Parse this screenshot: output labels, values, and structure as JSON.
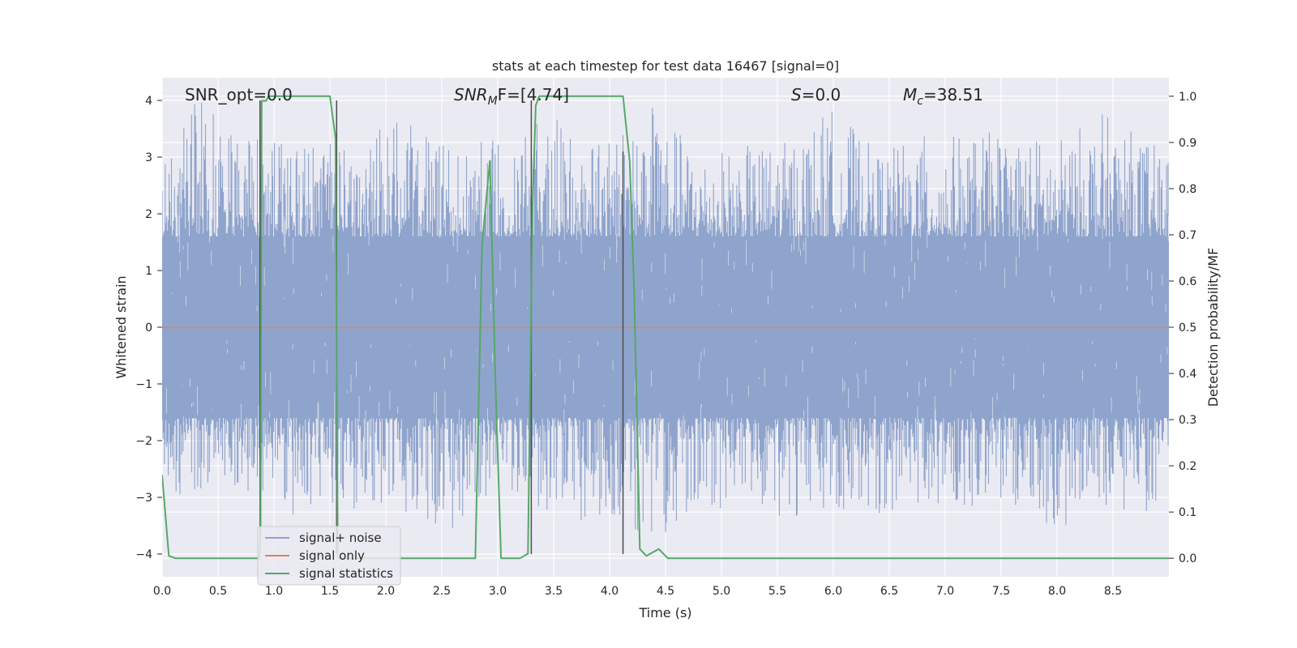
{
  "chart_data": {
    "type": "line",
    "title": "stats at each timestep for test data 16467 [signal=0]",
    "xlabel": "Time (s)",
    "ylabel": "Whitened strain",
    "y2label": "Detection probability/MF",
    "xlim": [
      0.0,
      9.0
    ],
    "ylim": [
      -4.4,
      4.4
    ],
    "y2lim": [
      -0.04,
      1.04
    ],
    "xticks": [
      "0.0",
      "0.5",
      "1.0",
      "1.5",
      "2.0",
      "2.5",
      "3.0",
      "3.5",
      "4.0",
      "4.5",
      "5.0",
      "5.5",
      "6.0",
      "6.5",
      "7.0",
      "7.5",
      "8.0",
      "8.5"
    ],
    "yticks": [
      "4",
      "3",
      "2",
      "1",
      "0",
      "−1",
      "−2",
      "−3",
      "−4"
    ],
    "y2ticks": [
      "1.0",
      "0.9",
      "0.8",
      "0.7",
      "0.6",
      "0.5",
      "0.4",
      "0.3",
      "0.2",
      "0.1",
      "0.0"
    ],
    "grid": true,
    "legend_position": "lower-left",
    "annotations": {
      "snr_opt": "SNR_opt=0.0",
      "snr_mf_base": "SNR",
      "snr_mf_sub": "M",
      "snr_mf_rest": "F=[4.74]",
      "s_label": "S",
      "s_rest": "=0.0",
      "mc_base": "M",
      "mc_sub": "c",
      "mc_rest": "=38.51"
    },
    "colors": {
      "signal_noise": "#8fa4cc",
      "signal_only": "#dd8452",
      "signal_statistics": "#55a868",
      "background": "#eaeaf2",
      "grid": "#ffffff",
      "vlines": "#4d4d4d"
    },
    "series": [
      {
        "name": "signal+ noise",
        "kind": "noise_band",
        "inner_amplitude": 1.6,
        "peak_envelope": [
          {
            "t": 0.0,
            "up": 2.9,
            "down": -3.0
          },
          {
            "t": 0.3,
            "up": 4.0,
            "down": -2.9
          },
          {
            "t": 0.5,
            "up": 4.0,
            "down": -2.8
          },
          {
            "t": 0.9,
            "up": 3.3,
            "down": -3.0
          },
          {
            "t": 1.2,
            "up": 3.4,
            "down": -3.4
          },
          {
            "t": 1.5,
            "up": 3.3,
            "down": -3.2
          },
          {
            "t": 1.8,
            "up": 3.5,
            "down": -3.3
          },
          {
            "t": 2.2,
            "up": 3.7,
            "down": -3.3
          },
          {
            "t": 2.6,
            "up": 3.1,
            "down": -3.7
          },
          {
            "t": 3.0,
            "up": 3.4,
            "down": -2.8
          },
          {
            "t": 3.5,
            "up": 3.7,
            "down": -3.4
          },
          {
            "t": 3.9,
            "up": 3.3,
            "down": -3.5
          },
          {
            "t": 4.4,
            "up": 3.9,
            "down": -3.8
          },
          {
            "t": 4.8,
            "up": 3.1,
            "down": -3.2
          },
          {
            "t": 5.2,
            "up": 3.2,
            "down": -3.2
          },
          {
            "t": 5.6,
            "up": 3.3,
            "down": -3.4
          },
          {
            "t": 6.0,
            "up": 3.9,
            "down": -3.2
          },
          {
            "t": 6.4,
            "up": 3.1,
            "down": -3.3
          },
          {
            "t": 6.8,
            "up": 3.4,
            "down": -3.1
          },
          {
            "t": 7.2,
            "up": 3.4,
            "down": -3.2
          },
          {
            "t": 7.6,
            "up": 3.5,
            "down": -3.3
          },
          {
            "t": 8.0,
            "up": 3.3,
            "down": -3.7
          },
          {
            "t": 8.4,
            "up": 3.8,
            "down": -3.2
          },
          {
            "t": 8.9,
            "up": 3.2,
            "down": -3.3
          }
        ]
      },
      {
        "name": "signal only",
        "x": [
          0.0,
          9.0
        ],
        "y": [
          0.0,
          0.0
        ]
      },
      {
        "name": "signal statistics",
        "axis": "right",
        "x": [
          0.0,
          0.06,
          0.12,
          0.2,
          0.5,
          0.87,
          0.88,
          0.89,
          0.93,
          0.95,
          1.0,
          1.25,
          1.5,
          1.55,
          1.57,
          1.58,
          1.6,
          2.0,
          2.5,
          2.8,
          2.86,
          2.93,
          2.98,
          3.03,
          3.1,
          3.2,
          3.27,
          3.31,
          3.34,
          3.37,
          3.7,
          4.12,
          4.18,
          4.22,
          4.27,
          4.33,
          4.44,
          4.52,
          4.6,
          5.0,
          6.0,
          7.0,
          8.0,
          9.0
        ],
        "y": [
          0.18,
          0.005,
          0.0,
          0.0,
          0.0,
          0.0,
          0.06,
          0.99,
          0.99,
          1.0,
          1.0,
          1.0,
          1.0,
          0.91,
          0.0,
          0.0,
          0.0,
          0.0,
          0.0,
          0.0,
          0.68,
          0.86,
          0.38,
          0.0,
          0.0,
          0.0,
          0.01,
          0.75,
          0.98,
          1.0,
          1.0,
          1.0,
          0.86,
          0.57,
          0.02,
          0.005,
          0.02,
          0.0,
          0.0,
          0.0,
          0.0,
          0.0,
          0.0,
          0.0
        ]
      }
    ],
    "vertical_lines": [
      {
        "x": 0.875,
        "y_top": 4.0,
        "y_bottom": -4.0
      },
      {
        "x": 1.56,
        "y_top": 4.0,
        "y_bottom": -4.0
      },
      {
        "x": 3.3,
        "y_top": 4.0,
        "y_bottom": -4.0
      },
      {
        "x": 4.12,
        "y_top": 3.1,
        "y_bottom": -4.0
      }
    ]
  }
}
